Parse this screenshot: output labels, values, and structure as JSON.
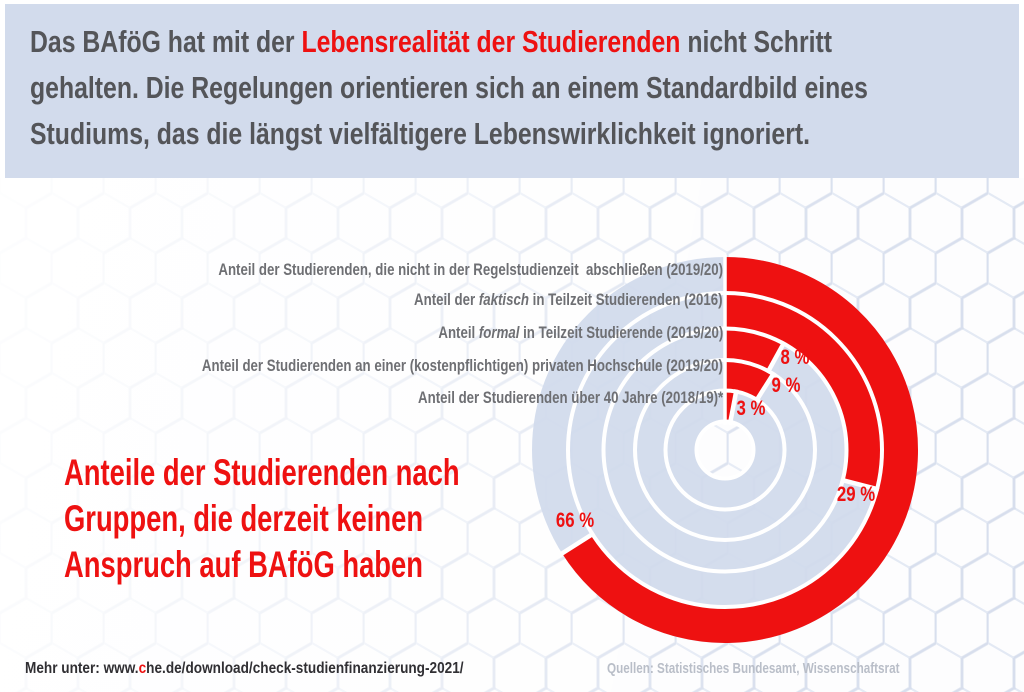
{
  "colors": {
    "accent_red": "#ee1111",
    "banner_background": "#d2dbec",
    "ring_track": "#d1daec",
    "row_label_gray": "#6e6f73",
    "header_text_gray": "#545559",
    "sources_gray": "#b9bec8"
  },
  "header": {
    "lines": [
      [
        {
          "text": "Das BAföG hat mit der ",
          "red": false
        },
        {
          "text": "Lebensrealität der Studierenden",
          "red": true
        },
        {
          "text": " nicht Schritt",
          "red": false
        }
      ],
      [
        {
          "text": "gehalten. Die Regelungen orientieren sich an einem Standardbild eines",
          "red": false
        }
      ],
      [
        {
          "text": "Studiums, das die längst vielfältigere Lebenswirklichkeit ignoriert.",
          "red": false
        }
      ]
    ]
  },
  "chart_data": {
    "type": "radial-bar",
    "unit": "%",
    "start_angle_deg": 0,
    "direction": "clockwise",
    "order": "first row = outermost ring",
    "title": "Anteile der Studierenden nach Gruppen, die derzeit keinen Anspruch auf BAföG haben",
    "title_lines": [
      "Anteile der Studierenden nach",
      "Gruppen, die derzeit keinen",
      "Anspruch auf BAföG haben"
    ],
    "rows": [
      {
        "label_parts": [
          {
            "text": "Anteil der Studierenden, die nicht in der Regelstudienzeit  abschließen (2019/20)",
            "italic": false
          }
        ],
        "value": 66,
        "value_label": "66 %"
      },
      {
        "label_parts": [
          {
            "text": "Anteil der ",
            "italic": false
          },
          {
            "text": "faktisch",
            "italic": true
          },
          {
            "text": " in Teilzeit Studierenden (2016)",
            "italic": false
          }
        ],
        "value": 29,
        "value_label": "29 %"
      },
      {
        "label_parts": [
          {
            "text": "Anteil ",
            "italic": false
          },
          {
            "text": "formal",
            "italic": true
          },
          {
            "text": " in Teilzeit Studierende (2019/20)",
            "italic": false
          }
        ],
        "value": 8,
        "value_label": "8 %"
      },
      {
        "label_parts": [
          {
            "text": "Anteil der Studierenden an einer (kostenpflichtigen) privaten Hochschule (2019/20)",
            "italic": false
          }
        ],
        "value": 9,
        "value_label": "9 %"
      },
      {
        "label_parts": [
          {
            "text": "Anteil der Studierenden über 40 Jahre (2018/19)*",
            "italic": false
          }
        ],
        "value": 3,
        "value_label": "3 %"
      }
    ]
  },
  "footer": {
    "more_parts": [
      {
        "text": "Mehr unter: www.",
        "red": false
      },
      {
        "text": "c",
        "red": true
      },
      {
        "text": "he.de/download/check-studienfinanzierung-2021/",
        "red": false
      }
    ],
    "sources": "Quellen: Statistisches Bundesamt, Wissenschaftsrat"
  }
}
